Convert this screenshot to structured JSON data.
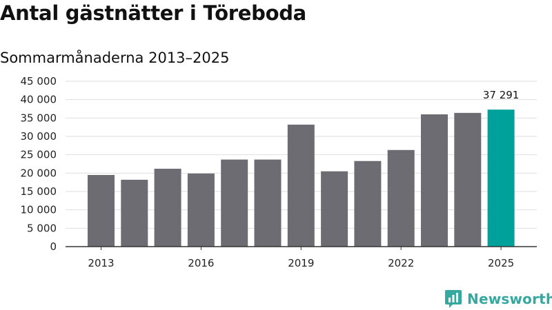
{
  "chart_data": {
    "type": "bar",
    "title": "Antal gästnätter i Töreboda",
    "subtitle": "Sommarmånaderna 2013–2025",
    "categories": [
      "2013",
      "2014",
      "2015",
      "2016",
      "2017",
      "2018",
      "2019",
      "2020",
      "2021",
      "2022",
      "2023",
      "2024",
      "2025"
    ],
    "values": [
      19500,
      18200,
      21200,
      19900,
      23700,
      23700,
      33200,
      20500,
      23300,
      26300,
      36000,
      36400,
      37291
    ],
    "x_tick_labels": [
      "2013",
      "",
      "",
      "2016",
      "",
      "",
      "2019",
      "",
      "",
      "2022",
      "",
      "",
      "2025"
    ],
    "y_ticks": [
      0,
      5000,
      10000,
      15000,
      20000,
      25000,
      30000,
      35000,
      40000,
      45000
    ],
    "y_tick_labels": [
      "0",
      "5 000",
      "10 000",
      "15 000",
      "20 000",
      "25 000",
      "30 000",
      "35 000",
      "40 000",
      "45 000"
    ],
    "ylim": [
      0,
      45000
    ],
    "xlabel": "",
    "ylabel": "",
    "grid": true,
    "data_labels": [
      {
        "category": "2025",
        "text": "37 291"
      }
    ],
    "colors": {
      "bar": "#6d6c72",
      "highlight": "#00a19a",
      "grid": "#dedede",
      "axis": "#333333"
    },
    "highlight_category": "2025"
  },
  "brand": {
    "name": "Newsworthy",
    "icon": "newsworthy-logo-icon",
    "color": "#35a9a0"
  }
}
